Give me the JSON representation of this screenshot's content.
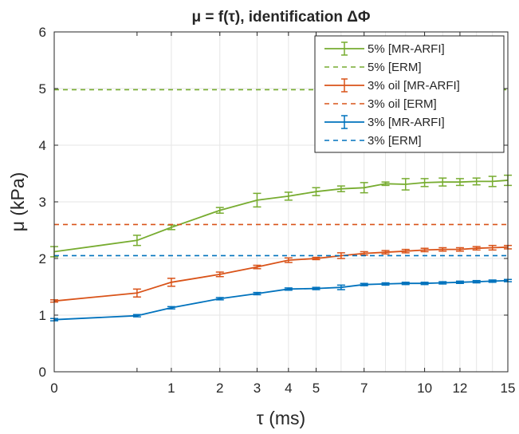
{
  "chart_data": {
    "type": "line",
    "title": "μ = f(τ), identification ΔΦ",
    "xlabel": "τ (ms)",
    "ylabel": "μ (kPa)",
    "xlim": [
      0,
      15
    ],
    "ylim": [
      0,
      6
    ],
    "x_scale": "sqrt",
    "xticks": [
      0,
      0.5,
      1,
      2,
      3,
      4,
      5,
      7,
      10,
      12,
      15
    ],
    "xtick_labels": [
      "0",
      "",
      "1",
      "2",
      "3",
      "4",
      "5",
      "7",
      "10",
      "12",
      "15"
    ],
    "xgrid": [
      0,
      1,
      2,
      3,
      4,
      5,
      6,
      7,
      8,
      9,
      10,
      11,
      12,
      13,
      14,
      15
    ],
    "yticks": [
      0,
      1,
      2,
      3,
      4,
      5,
      6
    ],
    "grid": true,
    "legend_position": "top-right",
    "x": [
      0,
      0.5,
      1,
      2,
      3,
      4,
      5,
      6,
      7,
      8,
      9,
      10,
      11,
      12,
      13,
      14,
      15
    ],
    "series": [
      {
        "name": "5% [MR-ARFI]",
        "kind": "errorbar",
        "color": "#77AC30",
        "values": [
          2.12,
          2.32,
          2.55,
          2.85,
          3.03,
          3.1,
          3.18,
          3.23,
          3.25,
          3.32,
          3.31,
          3.34,
          3.35,
          3.35,
          3.36,
          3.36,
          3.38
        ],
        "errors": [
          0.09,
          0.09,
          0.04,
          0.05,
          0.12,
          0.07,
          0.07,
          0.05,
          0.09,
          0.03,
          0.1,
          0.07,
          0.07,
          0.06,
          0.06,
          0.09,
          0.09
        ]
      },
      {
        "name": "5% [ERM]",
        "kind": "reference",
        "color": "#77AC30",
        "value": 4.98
      },
      {
        "name": "3% oil [MR-ARFI]",
        "kind": "errorbar",
        "color": "#D95319",
        "values": [
          1.25,
          1.39,
          1.58,
          1.72,
          1.85,
          1.97,
          2.0,
          2.05,
          2.09,
          2.11,
          2.13,
          2.15,
          2.16,
          2.16,
          2.18,
          2.19,
          2.2
        ],
        "errors": [
          0.02,
          0.07,
          0.07,
          0.04,
          0.03,
          0.04,
          0.02,
          0.05,
          0.03,
          0.03,
          0.03,
          0.03,
          0.03,
          0.03,
          0.03,
          0.04,
          0.03
        ]
      },
      {
        "name": "3% oil [ERM]",
        "kind": "reference",
        "color": "#D95319",
        "value": 2.6
      },
      {
        "name": "3% [MR-ARFI]",
        "kind": "errorbar",
        "color": "#0072BD",
        "values": [
          0.92,
          0.99,
          1.13,
          1.29,
          1.38,
          1.46,
          1.47,
          1.49,
          1.54,
          1.55,
          1.56,
          1.56,
          1.57,
          1.58,
          1.59,
          1.6,
          1.61
        ],
        "errors": [
          0.02,
          0.02,
          0.02,
          0.02,
          0.02,
          0.02,
          0.02,
          0.04,
          0.02,
          0.02,
          0.02,
          0.02,
          0.02,
          0.02,
          0.02,
          0.02,
          0.02
        ]
      },
      {
        "name": "3% [ERM]",
        "kind": "reference",
        "color": "#0072BD",
        "value": 2.05
      }
    ]
  }
}
